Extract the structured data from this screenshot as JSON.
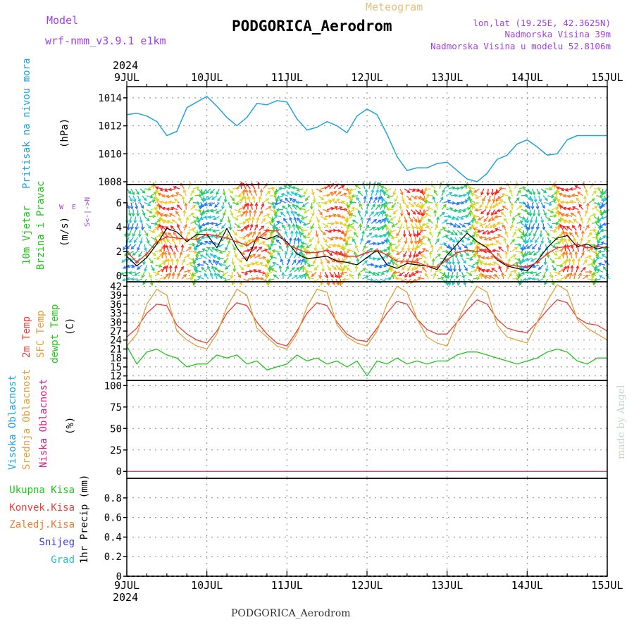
{
  "header": {
    "model_label": "Model",
    "model_name": "wrf-nmm_v3.9.1 e1km",
    "meteogram": "Meteogram",
    "station": "PODGORICA_Aerodrom",
    "lonlat": "lon,lat (19.25E, 42.3625N)",
    "elev": "Nadmorska Visina 39m",
    "elev_model": "Nadmorska Visina u modelu 52.8106m",
    "watermark": "made by Angel",
    "footer_station": "PODGORICA_Aerodrom"
  },
  "time_axis": {
    "year": "2024",
    "days": [
      "9JUL",
      "10JUL",
      "11JUL",
      "12JUL",
      "13JUL",
      "14JUL",
      "15JUL"
    ]
  },
  "panel_labels": {
    "pressure": {
      "title": "Pritisak na nivou mora",
      "unit": "(hPa)"
    },
    "wind": {
      "title1": "10m Vjetar",
      "title2": "Brzina i Pravac",
      "unit": "(m/s)",
      "compass_ns": "S<-|->N",
      "compass_we": "W  E"
    },
    "temp": {
      "t2m": "2m Temp",
      "sfc": "SFC Temp",
      "dew": "dewpt Temp",
      "unit": "(C)"
    },
    "cloud": {
      "high": "Visoka Oblacnost",
      "mid": "Srednja Oblacnost",
      "low": "Niska Oblacnost",
      "unit": "(%)"
    },
    "precip": {
      "total": "Ukupna Kisa",
      "conv": "Konvek.Kisa",
      "frz": "Zaledj.Kisa",
      "snow": "Snijeg",
      "grad": "Grad",
      "unit": "1hr Precip (mm)"
    }
  },
  "colors": {
    "pressure": "#1fa4e0",
    "t2m": "#e8403a",
    "sfc": "#e2a03a",
    "dew": "#22c41e",
    "wind_speed": "#000000",
    "wind_gust": "#e03c2a",
    "high_cloud": "#1fa4e0",
    "mid_cloud": "#e2a03a",
    "low_cloud": "#e01e8c",
    "purple": "#a040e0",
    "grid": "#aaaaaa"
  },
  "chart_data": [
    {
      "type": "line",
      "name": "pressure",
      "ylabel": "(hPa)",
      "ylim": [
        1007.8,
        1014.8
      ],
      "yticks": [
        1008,
        1010,
        1012,
        1014
      ],
      "x_hours": [
        0,
        3,
        6,
        9,
        12,
        15,
        18,
        21,
        24,
        27,
        30,
        33,
        36,
        39,
        42,
        45,
        48,
        51,
        54,
        57,
        60,
        63,
        66,
        69,
        72,
        75,
        78,
        81,
        84,
        87,
        90,
        93,
        96,
        99,
        102,
        105,
        108,
        111,
        114,
        117,
        120,
        123,
        126,
        129,
        132,
        135,
        138,
        141,
        144
      ],
      "values": [
        1012.8,
        1012.9,
        1012.7,
        1012.3,
        1011.3,
        1011.6,
        1013.3,
        1013.7,
        1014.1,
        1013.4,
        1012.6,
        1012.0,
        1012.6,
        1013.6,
        1013.5,
        1013.8,
        1013.7,
        1012.5,
        1011.7,
        1011.9,
        1012.3,
        1012.0,
        1011.5,
        1012.7,
        1013.2,
        1012.8,
        1011.4,
        1009.8,
        1008.8,
        1009.0,
        1009.0,
        1009.3,
        1009.4,
        1008.8,
        1008.2,
        1008.0,
        1008.6,
        1009.6,
        1009.9,
        1010.7,
        1011.0,
        1010.5,
        1009.9,
        1010.0,
        1011.0,
        1011.3,
        1011.3,
        1011.3,
        1011.3
      ]
    },
    {
      "type": "line",
      "name": "wind",
      "ylabel": "(m/s)",
      "ylim": [
        -0.5,
        7.5
      ],
      "yticks": [
        0,
        2,
        4,
        6
      ],
      "x_hours": [
        0,
        3,
        6,
        9,
        12,
        15,
        18,
        21,
        24,
        27,
        30,
        33,
        36,
        39,
        42,
        45,
        48,
        51,
        54,
        57,
        60,
        63,
        66,
        69,
        72,
        75,
        78,
        81,
        84,
        87,
        90,
        93,
        96,
        99,
        102,
        105,
        108,
        111,
        114,
        117,
        120,
        123,
        126,
        129,
        132,
        135,
        138,
        141,
        144
      ],
      "series": [
        {
          "key": "wind_speed",
          "values": [
            1.6,
            0.8,
            1.5,
            2.6,
            3.9,
            3.6,
            2.8,
            3.4,
            3.4,
            2.3,
            3.9,
            2.3,
            1.2,
            3.2,
            3.0,
            3.3,
            2.8,
            1.8,
            1.4,
            1.5,
            1.6,
            1.2,
            1.1,
            0.9,
            1.5,
            2.1,
            0.9,
            0.6,
            1.0,
            0.9,
            0.8,
            0.5,
            1.7,
            2.6,
            3.5,
            2.8,
            2.3,
            1.3,
            0.8,
            0.6,
            0.4,
            1.2,
            2.3,
            3.1,
            3.3,
            2.4,
            2.6,
            2.2,
            2.4
          ]
        },
        {
          "key": "wind_gust",
          "values": [
            2.0,
            1.1,
            1.8,
            2.8,
            3.2,
            3.1,
            3.0,
            3.0,
            3.4,
            3.3,
            3.1,
            2.8,
            2.5,
            3.0,
            3.7,
            3.7,
            2.6,
            2.2,
            1.9,
            1.9,
            2.1,
            1.8,
            1.6,
            1.6,
            1.9,
            2.1,
            1.7,
            1.2,
            1.2,
            1.1,
            0.8,
            0.7,
            1.3,
            1.9,
            2.1,
            2.0,
            2.2,
            1.4,
            0.9,
            0.8,
            0.7,
            1.1,
            1.8,
            2.3,
            2.4,
            2.6,
            2.3,
            2.4,
            2.3
          ]
        }
      ]
    },
    {
      "type": "line",
      "name": "temperature",
      "ylabel": "(C)",
      "ylim": [
        10.5,
        43.5
      ],
      "yticks": [
        12,
        15,
        18,
        21,
        24,
        27,
        30,
        33,
        36,
        39,
        42
      ],
      "x_hours": [
        0,
        3,
        6,
        9,
        12,
        15,
        18,
        21,
        24,
        27,
        30,
        33,
        36,
        39,
        42,
        45,
        48,
        51,
        54,
        57,
        60,
        63,
        66,
        69,
        72,
        75,
        78,
        81,
        84,
        87,
        90,
        93,
        96,
        99,
        102,
        105,
        108,
        111,
        114,
        117,
        120,
        123,
        126,
        129,
        132,
        135,
        138,
        141,
        144
      ],
      "series": [
        {
          "key": "t2m",
          "values": [
            25,
            28,
            33,
            36,
            35.5,
            29,
            26,
            24,
            23,
            27,
            33,
            36.5,
            35.5,
            30,
            26,
            23,
            22,
            27,
            33,
            36.5,
            35.5,
            30,
            26,
            24,
            23.5,
            28,
            33,
            37,
            36,
            31,
            27.5,
            26,
            26,
            30,
            34,
            37.5,
            36,
            31,
            28,
            27,
            26.5,
            30,
            34,
            37.5,
            36.5,
            31.5,
            29.5,
            29,
            27
          ]
        },
        {
          "key": "sfc",
          "values": [
            22,
            26,
            36,
            41,
            39,
            27,
            24,
            22,
            21,
            26,
            35,
            41,
            39,
            28,
            25,
            22,
            21,
            26,
            35,
            41,
            40,
            29,
            25,
            23,
            22,
            27,
            36,
            42,
            40,
            31,
            25,
            23,
            22,
            30,
            37,
            42,
            40,
            29,
            25,
            24,
            23,
            30,
            37,
            42.5,
            40.5,
            31,
            28,
            26,
            24
          ]
        },
        {
          "key": "dew",
          "values": [
            22,
            16,
            20,
            21,
            19,
            18,
            15,
            16,
            16,
            19,
            18,
            19,
            16,
            17,
            14,
            15,
            16,
            19,
            17,
            18,
            16,
            17,
            15,
            17,
            12,
            17,
            16,
            18,
            16,
            17,
            16,
            17,
            17,
            19,
            20,
            20,
            19,
            18,
            17,
            16,
            17,
            18,
            20,
            21,
            20,
            17,
            16,
            18,
            18
          ]
        }
      ]
    },
    {
      "type": "line",
      "name": "cloud_cover",
      "ylabel": "(%)",
      "ylim": [
        -8,
        106
      ],
      "yticks": [
        0,
        25,
        50,
        75,
        100
      ],
      "x_hours": [
        0,
        144
      ],
      "series": [
        {
          "key": "high_cloud",
          "values": [
            0,
            0
          ]
        },
        {
          "key": "mid_cloud",
          "values": [
            0,
            0
          ]
        },
        {
          "key": "low_cloud",
          "values": [
            0,
            0
          ]
        }
      ]
    },
    {
      "type": "bar",
      "name": "precipitation",
      "ylabel": "1hr Precip (mm)",
      "ylim": [
        0,
        1.0
      ],
      "yticks": [
        0,
        0.2,
        0.4,
        0.6,
        0.8
      ],
      "values": []
    }
  ]
}
